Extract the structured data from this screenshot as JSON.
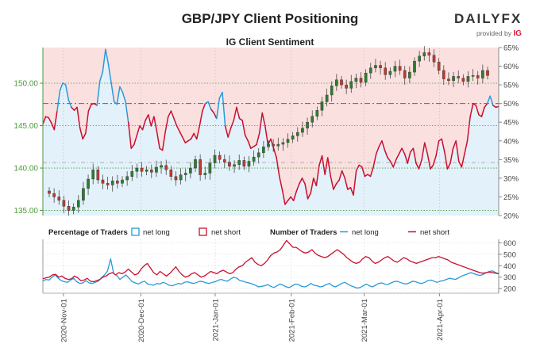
{
  "header": {
    "title": "GBP/JPY Client Positioning",
    "subtitle": "IG Client Sentiment"
  },
  "logo": {
    "brand_left": "DAILY",
    "brand_right": "FX",
    "provided_by": "provided by",
    "ig": "IG"
  },
  "legend": {
    "pct_title": "Percentage of Traders",
    "pct_long": "net long",
    "pct_short": "net short",
    "num_title": "Number of Traders",
    "num_long": "net long",
    "num_short": "net short"
  },
  "colors": {
    "price_green": "#2d7d2d",
    "price_red": "#c0392b",
    "net_long": "#2a9ad8",
    "net_short": "#c8102e",
    "short_bg": "#fbe0e0",
    "long_bg": "#e3f1fb",
    "grid_green": "#4a9a3a",
    "ref_line": "#7a5a6a"
  },
  "chart_data": [
    {
      "type": "line",
      "name": "price-and-sentiment",
      "price_axis": {
        "ticks": [
          "135.00",
          "140.00",
          "145.00",
          "150.00"
        ],
        "values": [
          135,
          140,
          145,
          150
        ],
        "ylim": [
          134.4,
          154.2
        ]
      },
      "pct_axis": {
        "ticks": [
          "20%",
          "25%",
          "30%",
          "35%",
          "40%",
          "45%",
          "50%",
          "55%",
          "60%",
          "65%"
        ],
        "values": [
          20,
          25,
          30,
          35,
          40,
          45,
          50,
          55,
          60,
          65
        ],
        "ylim": [
          20,
          65
        ]
      },
      "reference_line_pct": 50,
      "price_close": [
        137.0,
        136.6,
        136.2,
        135.5,
        135.0,
        135.4,
        136.2,
        137.6,
        138.7,
        139.8,
        138.6,
        138.2,
        138.0,
        138.5,
        138.2,
        138.6,
        139.0,
        139.6,
        140.0,
        139.6,
        139.8,
        139.5,
        140.1,
        140.3,
        139.8,
        139.0,
        138.6,
        139.2,
        139.4,
        140.0,
        141.0,
        139.2,
        139.4,
        140.6,
        141.5,
        141.0,
        140.7,
        140.2,
        140.4,
        140.9,
        140.2,
        140.8,
        141.3,
        141.8,
        142.5,
        142.8,
        142.6,
        142.8,
        143.0,
        143.4,
        143.8,
        144.2,
        144.7,
        145.4,
        146.1,
        146.8,
        147.8,
        148.6,
        149.7,
        150.4,
        149.8,
        149.4,
        150.2,
        150.6,
        150.1,
        151.2,
        151.8,
        152.1,
        151.8,
        151.0,
        151.4,
        152.0,
        151.5,
        150.6,
        151.3,
        152.6,
        153.2,
        153.6,
        153.3,
        152.5,
        151.5,
        150.5,
        150.3,
        150.8,
        150.6,
        150.2,
        150.8,
        150.9,
        150.6,
        151.5,
        150.9
      ],
      "pct_net_long": [
        44.5,
        46.5,
        46.2,
        44.8,
        43.0,
        48.0,
        53.5,
        55.5,
        55.0,
        51.0,
        49.0,
        48.2,
        49.0,
        43.5,
        40.5,
        42.0,
        48.0,
        49.8,
        50.0,
        49.5,
        56.0,
        58.5,
        64.5,
        60.5,
        55.5,
        50.5,
        49.8,
        54.5,
        53.0,
        50.5,
        45.0,
        38.0,
        39.0,
        41.5,
        44.0,
        43.0,
        45.5,
        47.0,
        44.0,
        46.5,
        42.5,
        38.0,
        37.5,
        42.5,
        46.5,
        48.0,
        46.0,
        44.0,
        42.5,
        41.0,
        39.5,
        40.0,
        40.5,
        42.0,
        40.5,
        44.0,
        48.0,
        50.0,
        50.5,
        48.5,
        47.5,
        46.0,
        51.5,
        53.0,
        44.0,
        41.0,
        43.5,
        45.5,
        49.0,
        46.0,
        45.5,
        41.5,
        40.0,
        38.0,
        38.5,
        39.0,
        42.0,
        47.5,
        44.0,
        39.0,
        40.5,
        38.0,
        35.5,
        30.5,
        27.0,
        23.0,
        24.0,
        25.0,
        24.0,
        26.5,
        28.5,
        30.0,
        28.5,
        24.5,
        26.0,
        30.0,
        28.0,
        33.5,
        36.0,
        31.0,
        35.5,
        30.5,
        27.0,
        28.5,
        29.5,
        32.0,
        30.0,
        27.0,
        27.5,
        25.5,
        32.0,
        33.5,
        33.0,
        30.5,
        31.0,
        30.5,
        33.0,
        36.5,
        38.5,
        40.0,
        37.5,
        35.5,
        34.5,
        33.0,
        35.0,
        36.5,
        38.0,
        36.5,
        34.0,
        37.0,
        38.0,
        34.0,
        32.5,
        35.0,
        39.5,
        36.5,
        32.5,
        33.5,
        36.0,
        40.0,
        40.5,
        37.0,
        32.5,
        34.0,
        38.0,
        40.0,
        34.5,
        33.0,
        36.5,
        40.0,
        46.5,
        50.0,
        49.5,
        47.0,
        46.5,
        49.0,
        50.0,
        52.0,
        49.5,
        49.0,
        49.2
      ],
      "pct_net_short_note": "net short = 100 - net long"
    },
    {
      "type": "line",
      "name": "number-of-traders",
      "y_axis": {
        "ticks": [
          "200",
          "300",
          "400",
          "500",
          "600"
        ],
        "values": [
          200,
          300,
          400,
          500,
          600
        ],
        "ylim": [
          160,
          630
        ]
      },
      "net_long": [
        265,
        280,
        275,
        300,
        320,
        290,
        270,
        260,
        255,
        275,
        290,
        260,
        245,
        250,
        270,
        250,
        245,
        255,
        265,
        295,
        320,
        355,
        460,
        330,
        315,
        280,
        300,
        320,
        290,
        260,
        250,
        240,
        255,
        265,
        240,
        235,
        230,
        245,
        240,
        255,
        245,
        230,
        225,
        235,
        245,
        240,
        255,
        260,
        250,
        245,
        255,
        265,
        260,
        250,
        245,
        255,
        260,
        275,
        280,
        270,
        265,
        285,
        300,
        290,
        270,
        265,
        255,
        250,
        240,
        230,
        215,
        220,
        225,
        235,
        220,
        210,
        225,
        240,
        230,
        215,
        210,
        225,
        240,
        235,
        220,
        215,
        225,
        245,
        230,
        225,
        215,
        220,
        235,
        245,
        225,
        215,
        230,
        245,
        255,
        240,
        225,
        215,
        205,
        210,
        225,
        240,
        225,
        215,
        230,
        245,
        250,
        240,
        235,
        250,
        260,
        265,
        255,
        245,
        240,
        250,
        265,
        260,
        250,
        245,
        255,
        270,
        275,
        265,
        255,
        265,
        270,
        280,
        290,
        285,
        280,
        295,
        310,
        320,
        330,
        340,
        330,
        320,
        315,
        325,
        340,
        350,
        355,
        340,
        330
      ],
      "net_short": [
        285,
        295,
        300,
        320,
        325,
        300,
        310,
        290,
        280,
        285,
        310,
        295,
        270,
        275,
        290,
        265,
        260,
        270,
        280,
        300,
        310,
        330,
        340,
        320,
        340,
        330,
        345,
        370,
        345,
        320,
        330,
        370,
        400,
        420,
        380,
        340,
        320,
        350,
        330,
        310,
        330,
        360,
        390,
        350,
        320,
        300,
        310,
        330,
        340,
        320,
        300,
        310,
        330,
        350,
        340,
        330,
        350,
        360,
        345,
        330,
        340,
        370,
        390,
        400,
        430,
        450,
        470,
        430,
        410,
        400,
        420,
        450,
        490,
        510,
        520,
        540,
        580,
        620,
        590,
        560,
        560,
        540,
        520,
        510,
        520,
        540,
        510,
        490,
        480,
        470,
        480,
        500,
        520,
        540,
        520,
        500,
        470,
        450,
        430,
        420,
        430,
        460,
        480,
        470,
        440,
        420,
        430,
        450,
        470,
        480,
        460,
        440,
        430,
        450,
        470,
        460,
        440,
        430,
        420,
        430,
        440,
        450,
        460,
        470,
        470,
        480,
        470,
        460,
        450,
        430,
        420,
        410,
        400,
        390,
        380,
        370,
        360,
        350,
        340,
        335,
        340,
        345,
        340,
        335,
        330
      ]
    }
  ],
  "x_axis": {
    "labels": [
      "2020-Nov-01",
      "2020-Dec-01",
      "2021-Jan-01",
      "2021-Feb-01",
      "2021-Mar-01",
      "2021-Apr-01"
    ]
  }
}
